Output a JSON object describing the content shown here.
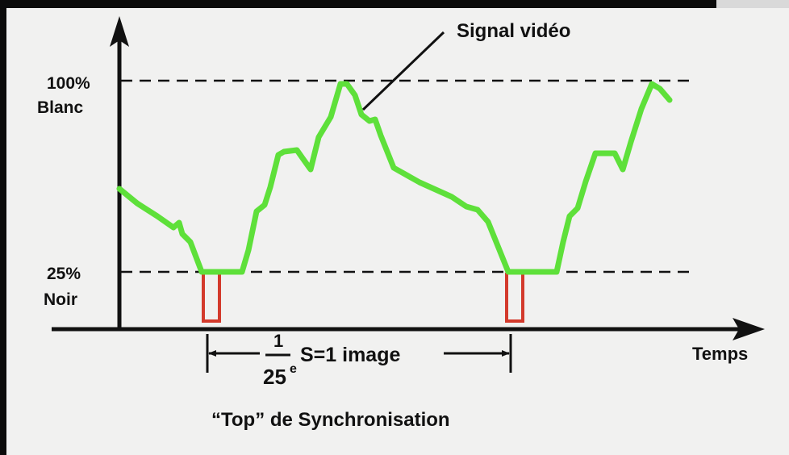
{
  "labels": {
    "signal": "Signal vidéo",
    "white_pct": "100%",
    "white_word": "Blanc",
    "black_pct": "25%",
    "black_word": "Noir",
    "time_axis": "Temps",
    "fraction_num": "1",
    "fraction_den": "25",
    "fraction_sup": "e",
    "period_text": "S=1 image",
    "sync_caption": "“Top” de Synchronisation"
  },
  "colors": {
    "background": "#f1f1f0",
    "frame": "#0b0b0b",
    "signal": "#5ee03a",
    "sync_pulse": "#d33a2c",
    "ink": "#111111"
  }
}
